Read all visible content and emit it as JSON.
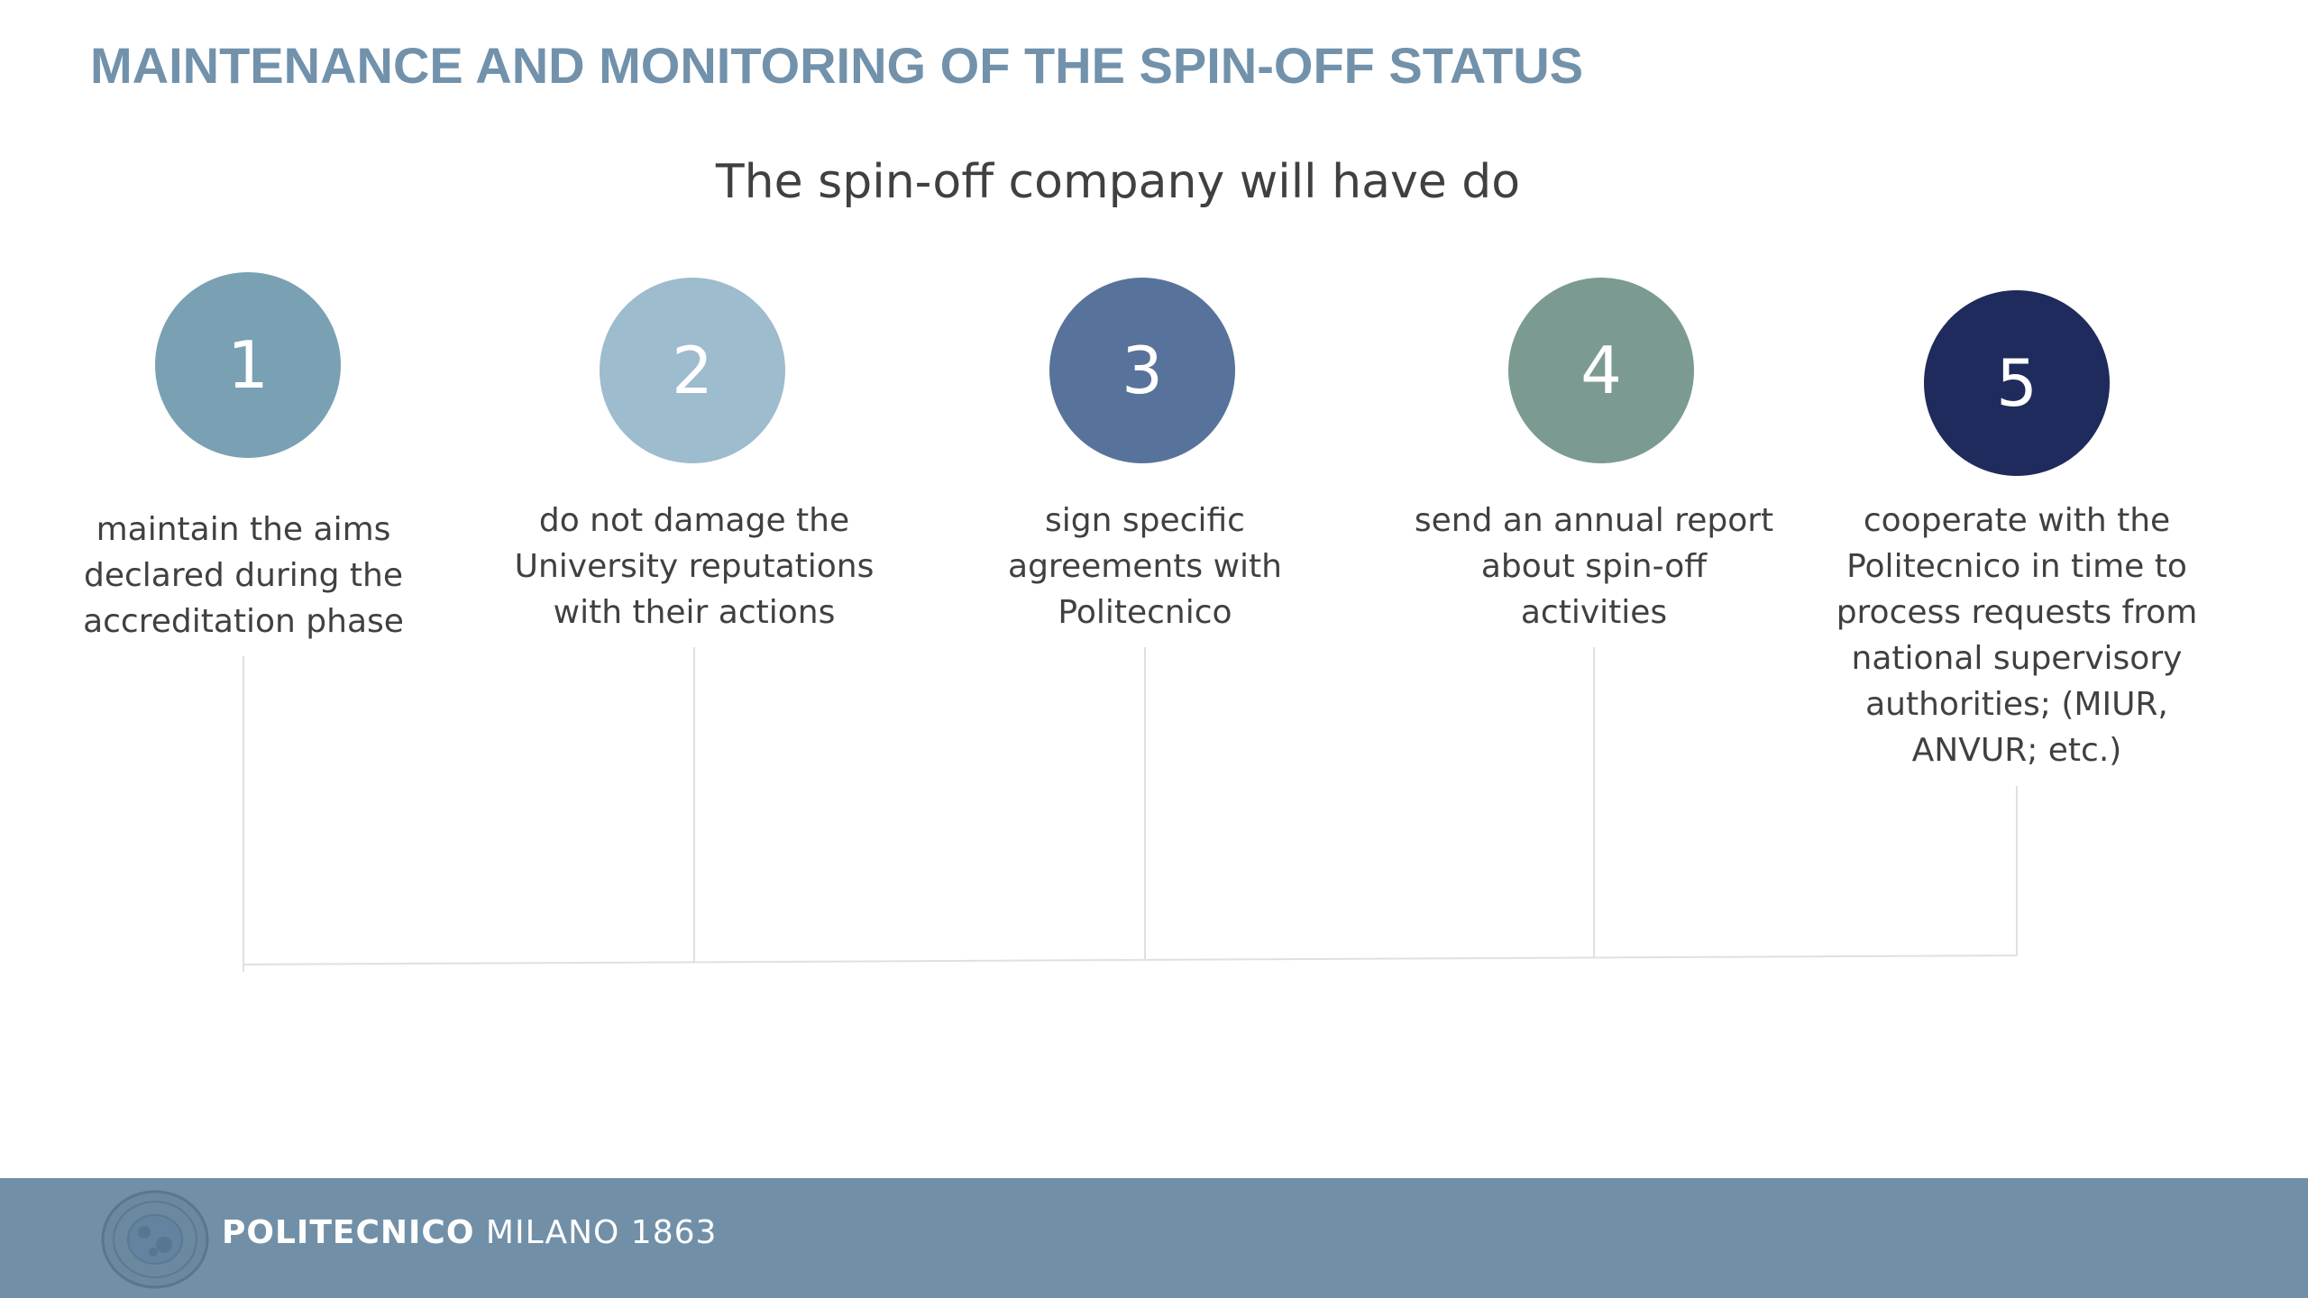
{
  "title": "MAINTENANCE AND MONITORING OF THE SPIN-OFF STATUS",
  "subtitle": "The spin-off company will have do",
  "colors": {
    "title": "#7292ab",
    "connector": "#e0e0e0",
    "footer": "#7190a8"
  },
  "steps": [
    {
      "number": "1",
      "color": "#7aa0b4",
      "lines": [
        "maintain the aims",
        "declared during the",
        "accreditation phase"
      ]
    },
    {
      "number": "2",
      "color": "#9dbccd",
      "lines": [
        "do not damage the",
        "University reputations",
        "with their actions"
      ]
    },
    {
      "number": "3",
      "color": "#58739b",
      "lines": [
        "sign specific",
        "agreements with",
        "Politecnico"
      ]
    },
    {
      "number": "4",
      "color": "#7b9a92",
      "lines": [
        "send an annual report",
        "about spin-off",
        "activities"
      ]
    },
    {
      "number": "5",
      "color": "#1e2b5c",
      "lines": [
        "cooperate with the",
        "Politecnico in time to",
        "process requests from",
        "national supervisory",
        "authorities; (MIUR,",
        "ANVUR; etc.)"
      ]
    }
  ],
  "footer": {
    "logo_icon": "university-seal-icon",
    "brand_strong": "POLITECNICO",
    "brand_light": "MILANO 1863"
  }
}
